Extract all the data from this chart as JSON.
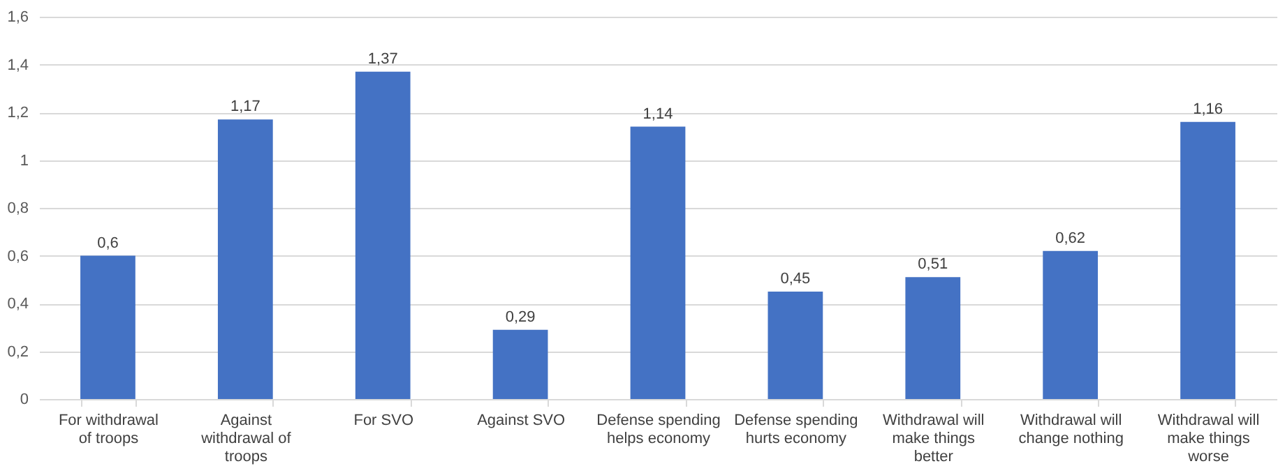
{
  "chart_data": {
    "type": "bar",
    "categories": [
      "For withdrawal of troops",
      "Against withdrawal of troops",
      "For SVO",
      "Against SVO",
      "Defense spending helps economy",
      "Defense spending hurts economy",
      "Withdrawal will make things better",
      "Withdrawal will change nothing",
      "Withdrawal will make things worse"
    ],
    "values": [
      0.6,
      1.17,
      1.37,
      0.29,
      1.14,
      0.45,
      0.51,
      0.62,
      1.16
    ],
    "value_labels": [
      "0,6",
      "1,17",
      "1,37",
      "0,29",
      "1,14",
      "0,45",
      "0,51",
      "0,62",
      "1,16"
    ],
    "color": "#4472c4",
    "ylim": [
      0,
      1.6
    ],
    "yticks": [
      0,
      {
        "value": 0.2,
        "label": "0,2"
      },
      {
        "value": 0.4,
        "label": "0,4"
      },
      {
        "value": 0.6,
        "label": "0,6"
      },
      {
        "value": 0.8,
        "label": "0,8"
      },
      1,
      {
        "value": 1.2,
        "label": "1,2"
      },
      {
        "value": 1.4,
        "label": "1,4"
      },
      {
        "value": 1.6,
        "label": "1,6"
      }
    ],
    "grid": "y"
  }
}
